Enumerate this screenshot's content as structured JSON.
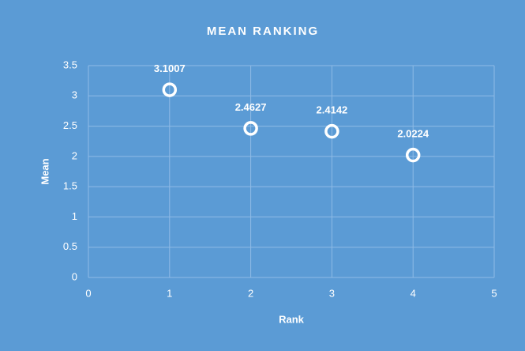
{
  "chart_data": {
    "type": "scatter",
    "title": "MEAN RANKING",
    "x_label": "Rank",
    "y_label": "Mean",
    "x": [
      1,
      2,
      3,
      4
    ],
    "values": [
      3.1007,
      2.4627,
      2.4142,
      2.0224
    ],
    "color": "#ffffff",
    "background": "#5b9bd5",
    "xlim": [
      0,
      5
    ],
    "xticks": [
      0,
      1,
      2,
      3,
      4,
      5
    ],
    "ylim": [
      0,
      3.5
    ],
    "yticks": [
      0,
      0.5,
      1,
      1.5,
      2,
      2.5,
      3,
      3.5
    ],
    "grid": true
  }
}
